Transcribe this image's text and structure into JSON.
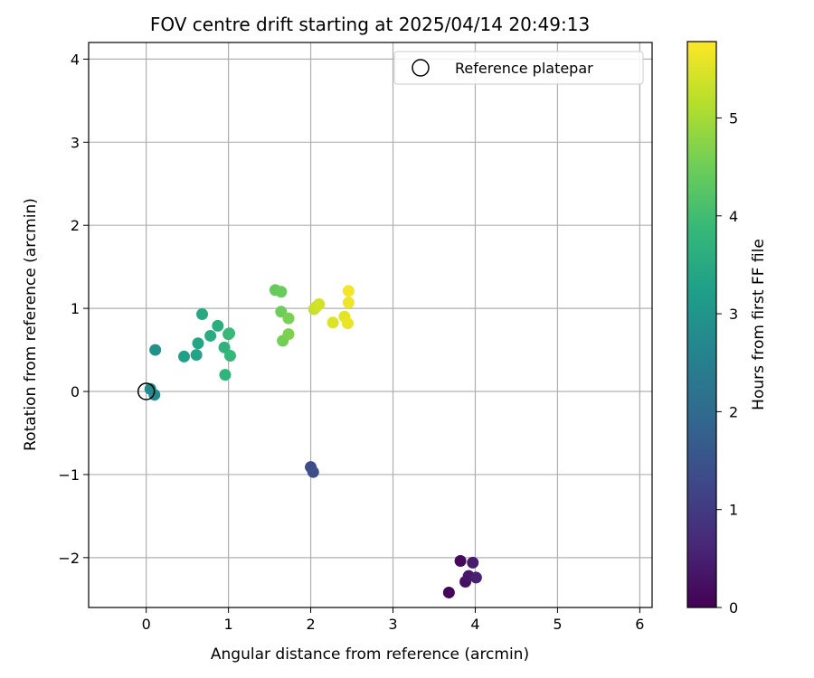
{
  "chart_data": {
    "type": "scatter",
    "title": "FOV centre drift starting at 2025/04/14 20:49:13",
    "xlabel": "Angular distance from reference (arcmin)",
    "ylabel": "Rotation from reference (arcmin)",
    "xlim": [
      -0.7,
      6.15
    ],
    "ylim": [
      -2.6,
      4.2
    ],
    "xticks": [
      0,
      1,
      2,
      3,
      4,
      5,
      6
    ],
    "yticks": [
      -2,
      -1,
      0,
      1,
      2,
      3,
      4
    ],
    "xtick_labels": [
      "0",
      "1",
      "2",
      "3",
      "4",
      "5",
      "6"
    ],
    "ytick_labels": [
      "−2",
      "−1",
      "0",
      "1",
      "2",
      "3",
      "4"
    ],
    "grid": true,
    "legend": {
      "placement": "top-right",
      "label": "Reference platepar"
    },
    "reference_point": {
      "x": 0,
      "y": 0
    },
    "colorbar": {
      "label": "Hours from first FF file",
      "min": 0,
      "max": 5.78,
      "ticks": [
        0,
        1,
        2,
        3,
        4,
        5
      ],
      "tick_labels": [
        "0",
        "1",
        "2",
        "3",
        "4",
        "5"
      ],
      "colormap": "viridis"
    },
    "points": [
      {
        "x": 3.68,
        "y": -2.42,
        "c": 0.05
      },
      {
        "x": 3.82,
        "y": -2.04,
        "c": 0.15
      },
      {
        "x": 3.88,
        "y": -2.29,
        "c": 0.25
      },
      {
        "x": 3.92,
        "y": -2.22,
        "c": 0.35
      },
      {
        "x": 3.97,
        "y": -2.06,
        "c": 0.45
      },
      {
        "x": 4.01,
        "y": -2.24,
        "c": 0.55
      },
      {
        "x": 2.0,
        "y": -0.91,
        "c": 1.3
      },
      {
        "x": 2.03,
        "y": -0.97,
        "c": 1.4
      },
      {
        "x": 0.05,
        "y": 0.03,
        "c": 2.7
      },
      {
        "x": 0.1,
        "y": -0.04,
        "c": 2.75
      },
      {
        "x": 0.11,
        "y": 0.5,
        "c": 2.9
      },
      {
        "x": 0.46,
        "y": 0.42,
        "c": 3.25
      },
      {
        "x": 0.61,
        "y": 0.44,
        "c": 3.35
      },
      {
        "x": 0.63,
        "y": 0.58,
        "c": 3.4
      },
      {
        "x": 0.68,
        "y": 0.93,
        "c": 3.5
      },
      {
        "x": 0.78,
        "y": 0.67,
        "c": 3.55
      },
      {
        "x": 0.87,
        "y": 0.79,
        "c": 3.6
      },
      {
        "x": 0.95,
        "y": 0.53,
        "c": 3.7
      },
      {
        "x": 0.96,
        "y": 0.2,
        "c": 3.75
      },
      {
        "x": 1.0,
        "y": 0.69,
        "c": 3.8
      },
      {
        "x": 1.02,
        "y": 0.43,
        "c": 3.85
      },
      {
        "x": 1.01,
        "y": 0.7,
        "c": 3.9
      },
      {
        "x": 1.57,
        "y": 1.22,
        "c": 4.4
      },
      {
        "x": 1.64,
        "y": 1.2,
        "c": 4.45
      },
      {
        "x": 1.64,
        "y": 0.96,
        "c": 4.5
      },
      {
        "x": 1.66,
        "y": 0.61,
        "c": 4.55
      },
      {
        "x": 1.73,
        "y": 0.88,
        "c": 4.6
      },
      {
        "x": 1.73,
        "y": 0.69,
        "c": 4.65
      },
      {
        "x": 2.04,
        "y": 0.99,
        "c": 5.3
      },
      {
        "x": 2.07,
        "y": 1.02,
        "c": 5.35
      },
      {
        "x": 2.1,
        "y": 1.05,
        "c": 5.4
      },
      {
        "x": 2.27,
        "y": 0.83,
        "c": 5.5
      },
      {
        "x": 2.41,
        "y": 0.9,
        "c": 5.55
      },
      {
        "x": 2.45,
        "y": 0.82,
        "c": 5.6
      },
      {
        "x": 2.46,
        "y": 1.07,
        "c": 5.65
      },
      {
        "x": 2.46,
        "y": 1.21,
        "c": 5.7
      }
    ]
  }
}
